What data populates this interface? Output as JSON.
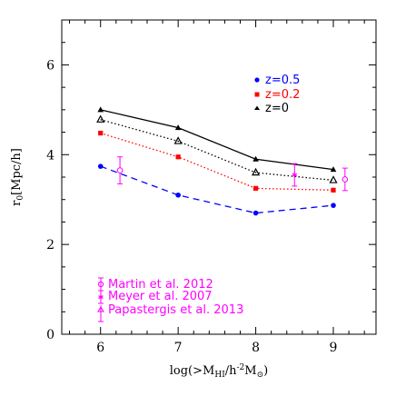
{
  "chart_data": {
    "type": "line",
    "xlabel": "log(>M_HI/h^-2 M_⊙)",
    "ylabel": "r_0[Mpc/h]",
    "xlim": [
      5.5,
      9.55
    ],
    "ylim": [
      0,
      7
    ],
    "x_ticks": [
      "6",
      "7",
      "8",
      "9"
    ],
    "y_ticks": [
      "0",
      "2",
      "4",
      "6"
    ],
    "grid": false,
    "legend_position": "top-right",
    "x": [
      6,
      7,
      8,
      9
    ],
    "series": [
      {
        "name": "z=0.5",
        "style": "dashed",
        "marker": "circle",
        "color": "#0000ff",
        "values": [
          3.74,
          3.1,
          2.7,
          2.87
        ]
      },
      {
        "name": "z=0.2",
        "style": "dotted",
        "marker": "square",
        "color": "#ff0000",
        "values": [
          4.48,
          3.95,
          3.25,
          3.21
        ]
      },
      {
        "name": "z=0",
        "style": "solid",
        "marker": "filled-triangle",
        "color": "#000000",
        "values": [
          5.0,
          4.6,
          3.9,
          3.67
        ]
      },
      {
        "name": "",
        "style": "dotted",
        "marker": "open-triangle",
        "color": "#000000",
        "values": [
          4.78,
          4.3,
          3.6,
          3.43
        ]
      }
    ],
    "observations": [
      {
        "name": "Martin et al. 2012",
        "color": "#ff00ff",
        "marker": "circle",
        "points": [
          {
            "x": 6.25,
            "y": 3.65,
            "err": 0.3
          },
          {
            "x": 9.15,
            "y": 3.45,
            "err": 0.25
          }
        ]
      },
      {
        "name": "Meyer et al. 2007",
        "color": "#ff00ff",
        "marker": "star",
        "points": [
          {
            "x": 8.5,
            "y": 3.55,
            "err": 0.25
          }
        ]
      },
      {
        "name": "Papastergis et al. 2013",
        "color": "#ff00ff",
        "marker": "triangle",
        "points": []
      }
    ]
  },
  "legend": {
    "z05": "z=0.5",
    "z02": "z=0.2",
    "z0": "z=0"
  },
  "obs_legend": {
    "martin": "Martin et al. 2012",
    "meyer": "Meyer et al. 2007",
    "papastergis": "Papastergis et al. 2013"
  },
  "colors": {
    "z05": "#0000ff",
    "z02": "#ff0000",
    "z0": "#000000",
    "obs": "#ff00ff"
  }
}
